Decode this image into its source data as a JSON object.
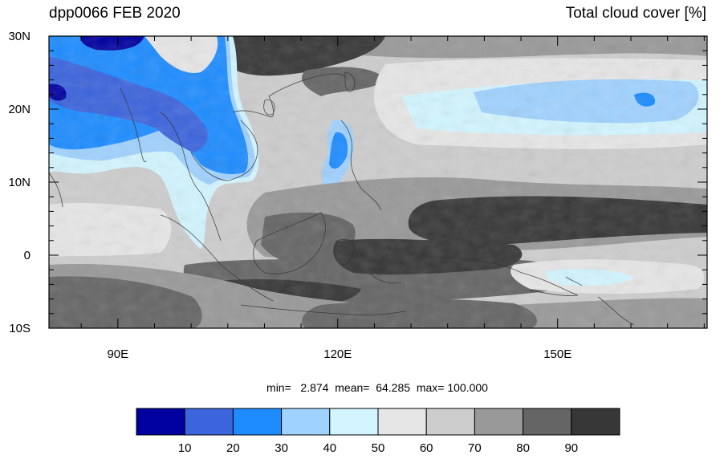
{
  "title_left": "dpp0066 FEB 2020",
  "title_right": "Total cloud cover [%]",
  "stats": {
    "text": "min=   2.874  mean=  64.285  max= 100.000",
    "min": 2.874,
    "mean": 64.285,
    "max": 100.0
  },
  "axes": {
    "lat_ticks": [
      {
        "value": 30,
        "label": "30N"
      },
      {
        "value": 20,
        "label": "20N"
      },
      {
        "value": 10,
        "label": "10N"
      },
      {
        "value": 0,
        "label": "0"
      },
      {
        "value": -10,
        "label": "10S"
      }
    ],
    "lon_ticks": [
      {
        "value": 90,
        "label": "90E"
      },
      {
        "value": 120,
        "label": "120E"
      },
      {
        "value": 150,
        "label": "150E"
      }
    ],
    "lon_range": [
      80.6,
      170.4
    ],
    "lat_range": [
      -10,
      30
    ]
  },
  "legend": {
    "colors": [
      "#0000a0",
      "#3c64dc",
      "#1e8cff",
      "#a0d2ff",
      "#d2f5ff",
      "#e6e6e6",
      "#cdcdcd",
      "#999999",
      "#656565",
      "#373737"
    ],
    "labels": [
      "10",
      "20",
      "30",
      "40",
      "50",
      "60",
      "70",
      "80",
      "90"
    ]
  }
}
